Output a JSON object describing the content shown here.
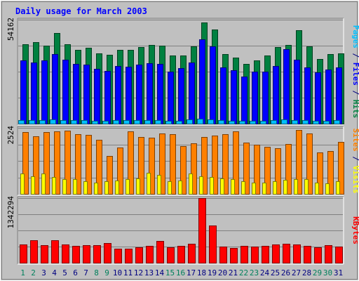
{
  "chart_data": {
    "type": "bar",
    "title": "Daily usage for March 2003",
    "categories": [
      "1",
      "2",
      "3",
      "4",
      "5",
      "6",
      "7",
      "8",
      "9",
      "10",
      "11",
      "12",
      "13",
      "14",
      "15",
      "16",
      "17",
      "18",
      "19",
      "20",
      "21",
      "22",
      "23",
      "24",
      "25",
      "26",
      "27",
      "28",
      "29",
      "30",
      "31"
    ],
    "weekend_days": [
      "1",
      "2",
      "8",
      "9",
      "15",
      "16",
      "22",
      "23",
      "29",
      "30"
    ],
    "panels": [
      {
        "id": "hits",
        "ytick": "54162",
        "ymax": 54162,
        "right_labels": [
          {
            "text": "Pages",
            "color": "#00c0ff"
          },
          {
            "text": " / ",
            "color": "#000080"
          },
          {
            "text": "Files",
            "color": "#0000ff"
          },
          {
            "text": " / ",
            "color": "#000080"
          },
          {
            "text": "Hits",
            "color": "#008040"
          }
        ],
        "series": [
          {
            "name": "Hits",
            "color": "#008040",
            "values": [
              41500,
              42600,
              40500,
              47100,
              41400,
              38300,
              39600,
              36500,
              36000,
              38500,
              38300,
              39800,
              41100,
              40600,
              35400,
              35600,
              40200,
              52800,
              49100,
              36400,
              34400,
              31100,
              33100,
              35600,
              39800,
              41100,
              48800,
              40400,
              33500,
              36400,
              36500
            ]
          },
          {
            "name": "Files",
            "color": "#0000ff",
            "values": [
              33000,
              31800,
              33000,
              36100,
              33200,
              31000,
              30800,
              28500,
              27500,
              30000,
              29500,
              30600,
              31500,
              31200,
              27200,
              29000,
              31700,
              43800,
              40400,
              29300,
              27700,
              24500,
              26900,
              27000,
              30000,
              38800,
              33400,
              29300,
              26800,
              28300,
              29300
            ]
          },
          {
            "name": "Pages",
            "color": "#00c0ff",
            "values": [
              2000,
              2000,
              2000,
              2200,
              2000,
              1800,
              1800,
              1600,
              1600,
              1800,
              1800,
              1800,
              1800,
              2000,
              1600,
              1600,
              2200,
              2600,
              2200,
              1800,
              1600,
              1400,
              1400,
              1600,
              1800,
              2200,
              2000,
              1800,
              1600,
              1600,
              1800
            ]
          }
        ]
      },
      {
        "id": "visits",
        "ytick": "2524",
        "ymax": 2524,
        "right_labels": [
          {
            "text": "Sites",
            "color": "#ff8000"
          },
          {
            "text": " / ",
            "color": "#000080"
          },
          {
            "text": "Visits",
            "color": "#ffff00"
          }
        ],
        "series": [
          {
            "name": "Sites",
            "color": "#ff8000",
            "values": [
              2360,
              2200,
              2370,
              2400,
              2430,
              2280,
              2250,
              2060,
              1460,
              1760,
              2390,
              2180,
              2160,
              2310,
              2280,
              1820,
              1940,
              2180,
              2240,
              2290,
              2400,
              1950,
              1870,
              1790,
              1740,
              1910,
              2450,
              2300,
              1590,
              1630,
              1990
            ]
          },
          {
            "name": "Visits",
            "color": "#ffff00",
            "values": [
              780,
              660,
              780,
              640,
              560,
              570,
              490,
              440,
              480,
              520,
              560,
              580,
              800,
              730,
              480,
              520,
              770,
              660,
              650,
              580,
              560,
              480,
              440,
              440,
              490,
              540,
              560,
              570,
              420,
              400,
              480
            ]
          }
        ]
      },
      {
        "id": "kbytes",
        "ytick": "1342294",
        "ymax": 1342294,
        "right_labels": [
          {
            "text": "KBytes",
            "color": "#ff0000"
          }
        ],
        "series": [
          {
            "name": "KBytes",
            "color": "#ff0000",
            "values": [
              380000,
              462000,
              362000,
              463000,
              382000,
              343000,
              362000,
              364000,
              402000,
              295000,
              290000,
              314000,
              350000,
              454000,
              323000,
              350000,
              392000,
              1342294,
              778000,
              340000,
              305000,
              346000,
              330000,
              345000,
              383000,
              387000,
              385000,
              344000,
              319000,
              371000,
              331000
            ]
          }
        ]
      }
    ]
  }
}
